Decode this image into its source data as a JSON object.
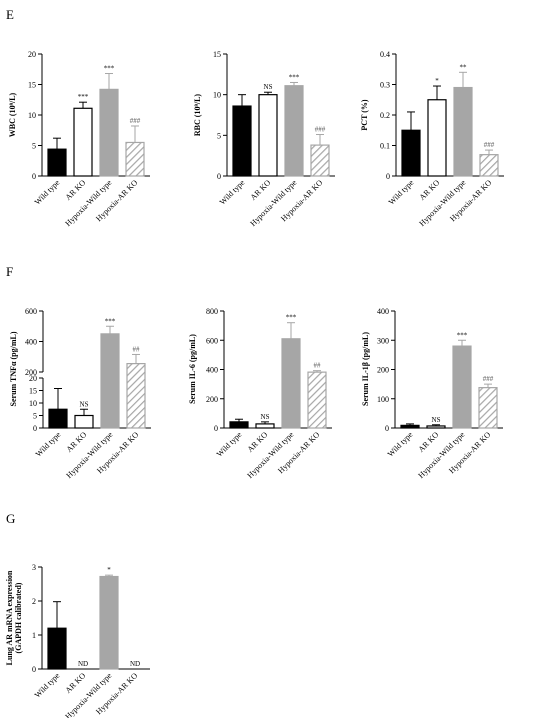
{
  "chart_data": [
    {
      "id": "wbc",
      "panel": "E",
      "type": "bar",
      "ylabel": "WBC (10⁹/L)",
      "categories": [
        "Wild type",
        "AR KO",
        "Hypoxia-Wild type",
        "Hypoxia-AR KO"
      ],
      "values": [
        4.4,
        11.1,
        14.2,
        5.5
      ],
      "errors": [
        1.8,
        1.0,
        2.6,
        2.7
      ],
      "significance": [
        "",
        "***",
        "***",
        "###"
      ],
      "ylim": [
        0,
        20
      ],
      "yticks": [
        0,
        5,
        10,
        15,
        20
      ]
    },
    {
      "id": "rbc",
      "panel": "E",
      "type": "bar",
      "ylabel": "RBC (10⁹/L)",
      "categories": [
        "Wild type",
        "AR KO",
        "Hypoxia-Wild type",
        "Hypoxia-AR KO"
      ],
      "values": [
        8.6,
        10.0,
        11.1,
        3.8
      ],
      "errors": [
        1.4,
        0.3,
        0.4,
        1.3
      ],
      "significance": [
        "",
        "NS",
        "***",
        "###"
      ],
      "ylim": [
        0,
        15
      ],
      "yticks": [
        0,
        5,
        10,
        15
      ]
    },
    {
      "id": "pct",
      "panel": "E",
      "type": "bar",
      "ylabel": "PCT (%)",
      "categories": [
        "Wild type",
        "AR KO",
        "Hypoxia-Wild type",
        "Hypoxia-AR KO"
      ],
      "values": [
        0.15,
        0.25,
        0.29,
        0.07
      ],
      "errors": [
        0.06,
        0.045,
        0.05,
        0.015
      ],
      "significance": [
        "",
        "*",
        "**",
        "###"
      ],
      "ylim": [
        0,
        0.4
      ],
      "yticks": [
        0.0,
        0.1,
        0.2,
        0.3,
        0.4
      ]
    },
    {
      "id": "tnf",
      "panel": "F",
      "type": "bar",
      "ylabel": "Serum TNFα (pg/mL)",
      "categories": [
        "Wild type",
        "AR KO",
        "Hypoxia-Wild type",
        "Hypoxia-AR KO"
      ],
      "values": [
        7.5,
        5.0,
        450,
        255
      ],
      "errors": [
        8.3,
        2.5,
        50,
        60
      ],
      "significance": [
        "",
        "NS",
        "***",
        "##"
      ],
      "ylim": [
        0,
        600
      ],
      "axis_break": [
        20,
        200
      ],
      "yticks": [
        0,
        5,
        10,
        15,
        20,
        200,
        400,
        600
      ]
    },
    {
      "id": "il6",
      "panel": "F",
      "type": "bar",
      "ylabel": "Serum IL-6 (pg/mL)",
      "categories": [
        "Wild type",
        "AR KO",
        "Hypoxia-Wild type",
        "Hypoxia-AR KO"
      ],
      "values": [
        42,
        28,
        610,
        382
      ],
      "errors": [
        18,
        14,
        110,
        10
      ],
      "significance": [
        "",
        "NS",
        "***",
        "##"
      ],
      "ylim": [
        0,
        800
      ],
      "yticks": [
        0,
        200,
        400,
        600,
        800
      ]
    },
    {
      "id": "il1b",
      "panel": "F",
      "type": "bar",
      "ylabel": "Serum IL-1β (pg/mL)",
      "categories": [
        "Wild type",
        "AR KO",
        "Hypoxia-Wild type",
        "Hypoxia-AR KO"
      ],
      "values": [
        9,
        7,
        280,
        138
      ],
      "errors": [
        5,
        4,
        20,
        12
      ],
      "significance": [
        "",
        "NS",
        "***",
        "###"
      ],
      "ylim": [
        0,
        400
      ],
      "yticks": [
        0,
        100,
        200,
        300,
        400
      ]
    },
    {
      "id": "lar",
      "panel": "G",
      "type": "bar",
      "ylabel": "Lung AR mRNA expression",
      "ylabel2": "(GAPDH calibrated)",
      "categories": [
        "Wild type",
        "AR KO",
        "Hypoxia-Wild type",
        "Hypoxia-AR KO"
      ],
      "values": [
        1.2,
        0,
        2.72,
        0
      ],
      "errors": [
        0.78,
        0,
        0.04,
        0
      ],
      "significance": [
        "",
        "ND",
        "*",
        "ND"
      ],
      "ylim": [
        0,
        3
      ],
      "yticks": [
        0,
        1,
        2,
        3
      ]
    }
  ],
  "panels": {
    "e": "E",
    "f": "F",
    "g": "G"
  },
  "bar_colors": {
    "wild_type": "#000000",
    "ar_ko": "#ffffff",
    "hypoxia_wild_type": "#a6a6a6",
    "hypoxia_ar_ko": "hatched-grey"
  }
}
